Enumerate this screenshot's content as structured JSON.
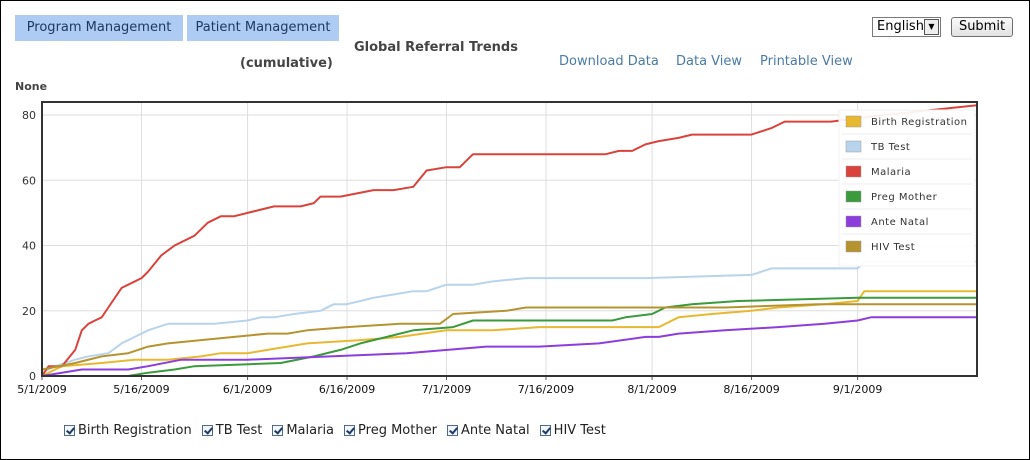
{
  "nav": {
    "program_management": "Program Management",
    "patient_management": "Patient Management"
  },
  "language": {
    "selected": "English"
  },
  "submit_label": "Submit",
  "chart_title": "Global Referral Trends",
  "chart_subtitle": "(cumulative)",
  "links": {
    "download": "Download Data",
    "data_view": "Data View",
    "printable": "Printable View"
  },
  "axis_group_label": "None",
  "colors": {
    "nav_button_bg": "#aecbf3",
    "link": "#4a7aa6"
  },
  "chart_data": {
    "type": "line",
    "title": "Global Referral Trends",
    "subtitle": "(cumulative)",
    "ylabel": "",
    "xlabel": "",
    "grid": true,
    "legend_position": "top-right",
    "xlim": [
      "2009-05-01",
      "2009-09-19"
    ],
    "ylim": [
      0,
      84
    ],
    "x_ticks": [
      "5/1/2009",
      "5/16/2009",
      "6/1/2009",
      "6/16/2009",
      "7/1/2009",
      "7/16/2009",
      "8/1/2009",
      "8/16/2009",
      "9/1/2009"
    ],
    "y_ticks": [
      "0",
      "20",
      "40",
      "60",
      "80"
    ],
    "series": [
      {
        "name": "Birth Registration",
        "color": "#e8b830",
        "x": [
          "2009-05-01",
          "2009-05-04",
          "2009-05-10",
          "2009-05-15",
          "2009-05-20",
          "2009-05-25",
          "2009-05-28",
          "2009-06-01",
          "2009-06-04",
          "2009-06-10",
          "2009-06-18",
          "2009-06-24",
          "2009-07-01",
          "2009-07-08",
          "2009-07-15",
          "2009-07-22",
          "2009-07-30",
          "2009-08-02",
          "2009-08-05",
          "2009-08-10",
          "2009-08-16",
          "2009-08-20",
          "2009-08-27",
          "2009-09-01",
          "2009-09-02",
          "2009-09-19"
        ],
        "values": [
          0,
          3,
          4,
          5,
          5,
          6,
          7,
          7,
          8,
          10,
          11,
          12,
          14,
          14,
          15,
          15,
          15,
          15,
          18,
          19,
          20,
          21,
          22,
          23,
          26,
          26
        ]
      },
      {
        "name": "TB Test",
        "color": "#b8d4ec",
        "x": [
          "2009-05-01",
          "2009-05-03",
          "2009-05-06",
          "2009-05-08",
          "2009-05-11",
          "2009-05-13",
          "2009-05-15",
          "2009-05-17",
          "2009-05-20",
          "2009-05-27",
          "2009-06-01",
          "2009-06-03",
          "2009-06-05",
          "2009-06-08",
          "2009-06-12",
          "2009-06-14",
          "2009-06-16",
          "2009-06-18",
          "2009-06-20",
          "2009-06-23",
          "2009-06-26",
          "2009-06-28",
          "2009-07-01",
          "2009-07-05",
          "2009-07-08",
          "2009-07-13",
          "2009-07-31",
          "2009-08-16",
          "2009-08-19",
          "2009-08-25",
          "2009-09-01",
          "2009-09-02",
          "2009-09-19"
        ],
        "values": [
          1,
          3,
          5,
          6,
          7,
          10,
          12,
          14,
          16,
          16,
          17,
          18,
          18,
          19,
          20,
          22,
          22,
          23,
          24,
          25,
          26,
          26,
          28,
          28,
          29,
          30,
          30,
          31,
          33,
          33,
          33,
          35,
          35
        ]
      },
      {
        "name": "Malaria",
        "color": "#d9433c",
        "x": [
          "2009-05-01",
          "2009-05-02",
          "2009-05-04",
          "2009-05-06",
          "2009-05-07",
          "2009-05-08",
          "2009-05-09",
          "2009-05-10",
          "2009-05-11",
          "2009-05-13",
          "2009-05-14",
          "2009-05-16",
          "2009-05-17",
          "2009-05-19",
          "2009-05-21",
          "2009-05-24",
          "2009-05-26",
          "2009-05-28",
          "2009-05-30",
          "2009-06-01",
          "2009-06-03",
          "2009-06-05",
          "2009-06-07",
          "2009-06-09",
          "2009-06-11",
          "2009-06-12",
          "2009-06-15",
          "2009-06-20",
          "2009-06-21",
          "2009-06-23",
          "2009-06-26",
          "2009-06-28",
          "2009-07-01",
          "2009-07-03",
          "2009-07-05",
          "2009-07-25",
          "2009-07-27",
          "2009-07-29",
          "2009-07-31",
          "2009-08-02",
          "2009-08-05",
          "2009-08-07",
          "2009-08-10",
          "2009-08-16",
          "2009-08-19",
          "2009-08-21",
          "2009-08-28",
          "2009-09-05",
          "2009-09-19"
        ],
        "values": [
          0,
          3,
          3,
          8,
          14,
          16,
          17,
          18,
          21,
          27,
          28,
          30,
          32,
          37,
          40,
          43,
          47,
          49,
          49,
          50,
          51,
          52,
          52,
          52,
          53,
          55,
          55,
          57,
          57,
          57,
          58,
          63,
          64,
          64,
          68,
          68,
          69,
          69,
          71,
          72,
          73,
          74,
          74,
          74,
          76,
          78,
          78,
          80,
          83
        ]
      },
      {
        "name": "Preg Mother",
        "color": "#3a9a3c",
        "x": [
          "2009-05-01",
          "2009-05-14",
          "2009-05-17",
          "2009-05-21",
          "2009-05-24",
          "2009-06-06",
          "2009-06-11",
          "2009-06-15",
          "2009-06-18",
          "2009-06-22",
          "2009-06-26",
          "2009-07-02",
          "2009-07-05",
          "2009-07-26",
          "2009-07-28",
          "2009-08-01",
          "2009-08-03",
          "2009-08-07",
          "2009-08-14",
          "2009-09-01",
          "2009-09-19"
        ],
        "values": [
          0,
          0,
          1,
          2,
          3,
          4,
          6,
          8,
          10,
          12,
          14,
          15,
          17,
          17,
          18,
          19,
          21,
          22,
          23,
          24,
          24
        ]
      },
      {
        "name": "Ante Natal",
        "color": "#8d3ddb",
        "x": [
          "2009-05-01",
          "2009-05-07",
          "2009-05-14",
          "2009-05-17",
          "2009-05-22",
          "2009-06-01",
          "2009-06-25",
          "2009-07-07",
          "2009-07-15",
          "2009-07-24",
          "2009-07-31",
          "2009-08-02",
          "2009-08-05",
          "2009-08-12",
          "2009-08-20",
          "2009-08-27",
          "2009-09-01",
          "2009-09-03",
          "2009-09-19"
        ],
        "values": [
          0,
          2,
          2,
          3,
          5,
          5,
          7,
          9,
          9,
          10,
          12,
          12,
          13,
          14,
          15,
          16,
          17,
          18,
          18
        ]
      },
      {
        "name": "HIV Test",
        "color": "#b59430",
        "x": [
          "2009-05-01",
          "2009-05-06",
          "2009-05-10",
          "2009-05-14",
          "2009-05-17",
          "2009-05-20",
          "2009-05-25",
          "2009-05-30",
          "2009-06-04",
          "2009-06-07",
          "2009-06-10",
          "2009-06-16",
          "2009-06-24",
          "2009-06-30",
          "2009-07-02",
          "2009-07-10",
          "2009-07-13",
          "2009-08-01",
          "2009-08-04",
          "2009-08-12",
          "2009-08-26",
          "2009-09-01",
          "2009-09-19"
        ],
        "values": [
          2,
          4,
          6,
          7,
          9,
          10,
          11,
          12,
          13,
          13,
          14,
          15,
          16,
          16,
          19,
          20,
          21,
          21,
          21,
          21,
          22,
          22,
          22
        ]
      }
    ]
  }
}
